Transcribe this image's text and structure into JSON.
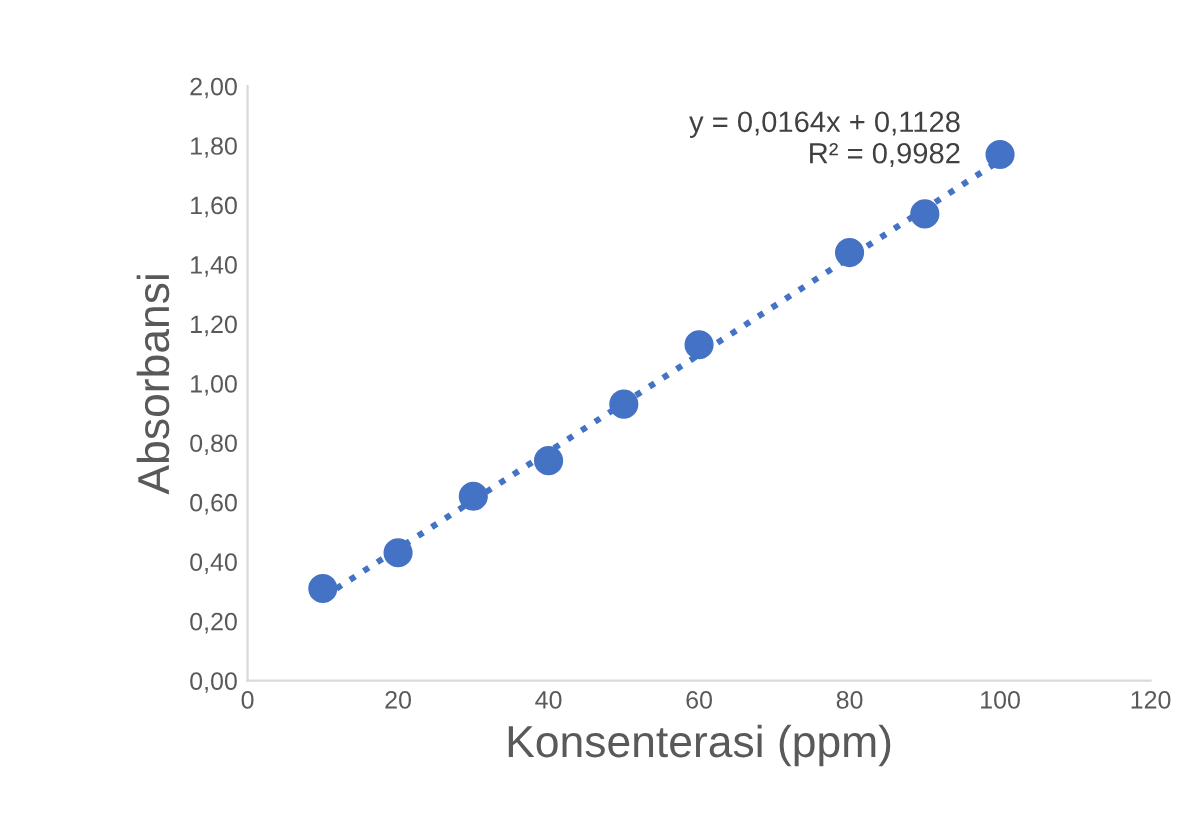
{
  "chart_data": {
    "type": "scatter",
    "xlabel": "Konsenterasi (ppm)",
    "ylabel": "Absorbansi",
    "xlim": [
      0,
      120
    ],
    "xticks": [
      0,
      20,
      40,
      60,
      80,
      100,
      120
    ],
    "ylim": [
      0,
      2
    ],
    "yticks": [
      {
        "value": 0,
        "label": "0,00"
      },
      {
        "value": 0.2,
        "label": "0,20"
      },
      {
        "value": 0.4,
        "label": "0,40"
      },
      {
        "value": 0.6,
        "label": "0,60"
      },
      {
        "value": 0.8,
        "label": "0,80"
      },
      {
        "value": 1.0,
        "label": "1,00"
      },
      {
        "value": 1.2,
        "label": "1,20"
      },
      {
        "value": 1.4,
        "label": "1,40"
      },
      {
        "value": 1.6,
        "label": "1,60"
      },
      {
        "value": 1.8,
        "label": "1,80"
      },
      {
        "value": 2.0,
        "label": "2,00"
      }
    ],
    "grid": false,
    "series": [
      {
        "color": "#4472c4",
        "marker": "circle",
        "x": [
          10,
          20,
          30,
          40,
          50,
          60,
          80,
          90,
          100
        ],
        "values": [
          0.31,
          0.43,
          0.62,
          0.74,
          0.93,
          1.13,
          1.44,
          1.57,
          1.77
        ]
      },
      {
        "type": "line",
        "color": "#4472c4",
        "line_style": "dotted",
        "marker": "none",
        "x": [
          10,
          100
        ],
        "values": [
          0.28,
          1.75
        ]
      }
    ],
    "annotations": [
      "y = 0,0164x + 0,1128\nR² = 0,9982"
    ]
  }
}
